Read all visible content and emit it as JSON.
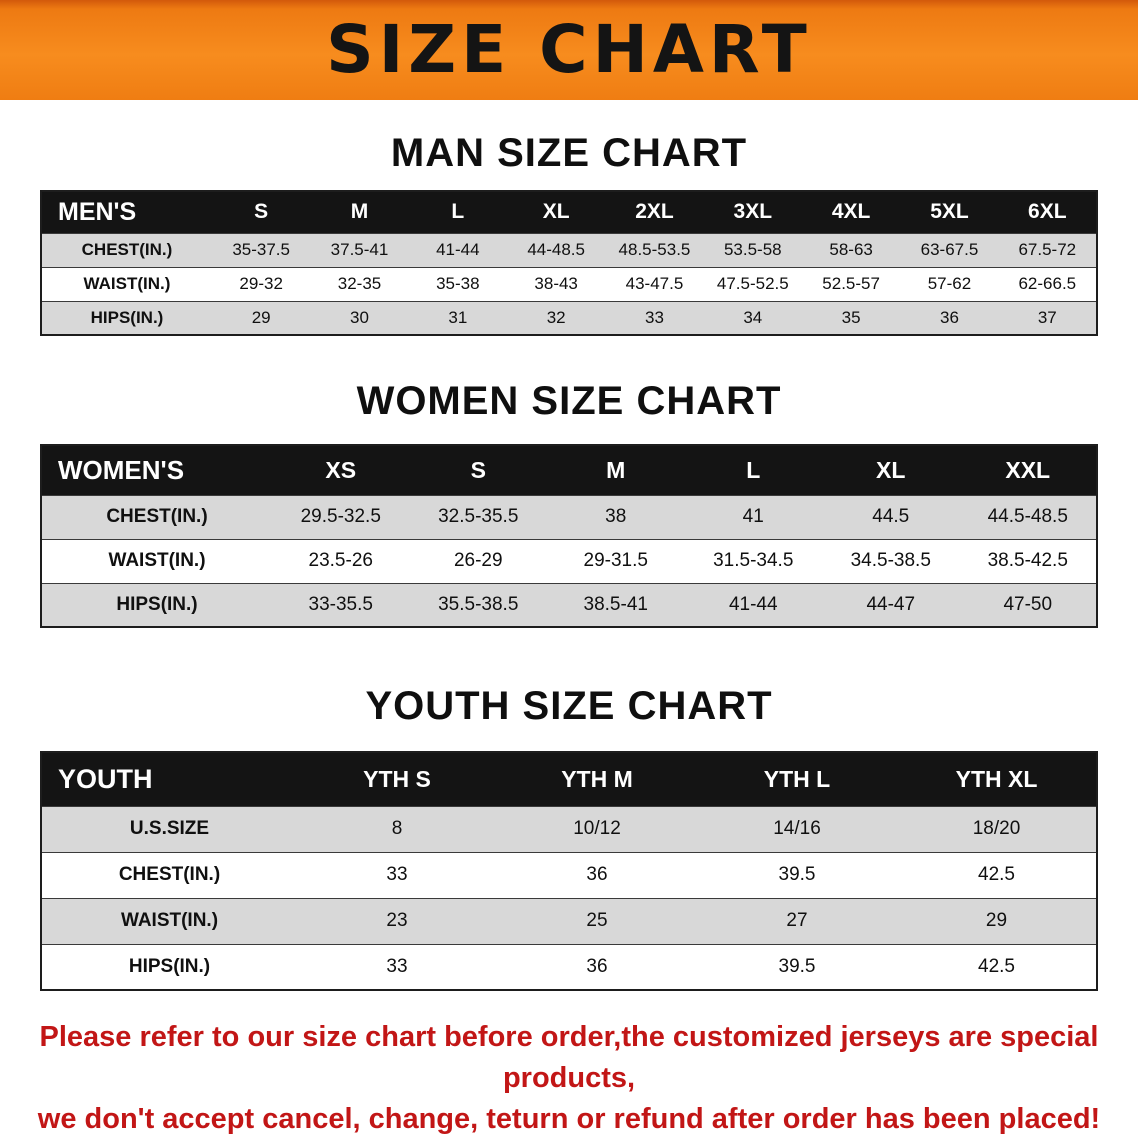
{
  "banner": {
    "title": "SIZE CHART",
    "bg_color": "#f78c1e",
    "text_color": "#141414"
  },
  "chart_data": [
    {
      "type": "table",
      "title": "MAN SIZE CHART",
      "header": [
        "MEN'S",
        "S",
        "M",
        "L",
        "XL",
        "2XL",
        "3XL",
        "4XL",
        "5XL",
        "6XL"
      ],
      "rows": [
        [
          "CHEST(IN.)",
          "35-37.5",
          "37.5-41",
          "41-44",
          "44-48.5",
          "48.5-53.5",
          "53.5-58",
          "58-63",
          "63-67.5",
          "67.5-72"
        ],
        [
          "WAIST(IN.)",
          "29-32",
          "32-35",
          "35-38",
          "38-43",
          "43-47.5",
          "47.5-52.5",
          "52.5-57",
          "57-62",
          "62-66.5"
        ],
        [
          "HIPS(IN.)",
          "29",
          "30",
          "31",
          "32",
          "33",
          "34",
          "35",
          "36",
          "37"
        ]
      ]
    },
    {
      "type": "table",
      "title": "WOMEN SIZE CHART",
      "header": [
        "WOMEN'S",
        "XS",
        "S",
        "M",
        "L",
        "XL",
        "XXL"
      ],
      "rows": [
        [
          "CHEST(IN.)",
          "29.5-32.5",
          "32.5-35.5",
          "38",
          "41",
          "44.5",
          "44.5-48.5"
        ],
        [
          "WAIST(IN.)",
          "23.5-26",
          "26-29",
          "29-31.5",
          "31.5-34.5",
          "34.5-38.5",
          "38.5-42.5"
        ],
        [
          "HIPS(IN.)",
          "33-35.5",
          "35.5-38.5",
          "38.5-41",
          "41-44",
          "44-47",
          "47-50"
        ]
      ]
    },
    {
      "type": "table",
      "title": "YOUTH SIZE CHART",
      "header": [
        "YOUTH",
        "YTH S",
        "YTH M",
        "YTH L",
        "YTH XL"
      ],
      "rows": [
        [
          "U.S.SIZE",
          "8",
          "10/12",
          "14/16",
          "18/20"
        ],
        [
          "CHEST(IN.)",
          "33",
          "36",
          "39.5",
          "42.5"
        ],
        [
          "WAIST(IN.)",
          "23",
          "25",
          "27",
          "29"
        ],
        [
          "HIPS(IN.)",
          "33",
          "36",
          "39.5",
          "42.5"
        ]
      ]
    }
  ],
  "footer": {
    "line1": "Please refer to our size chart before order,the customized jerseys are special products,",
    "line2": "we don't accept cancel, change, teturn or refund after order has been placed!",
    "text_color": "#c21616"
  }
}
